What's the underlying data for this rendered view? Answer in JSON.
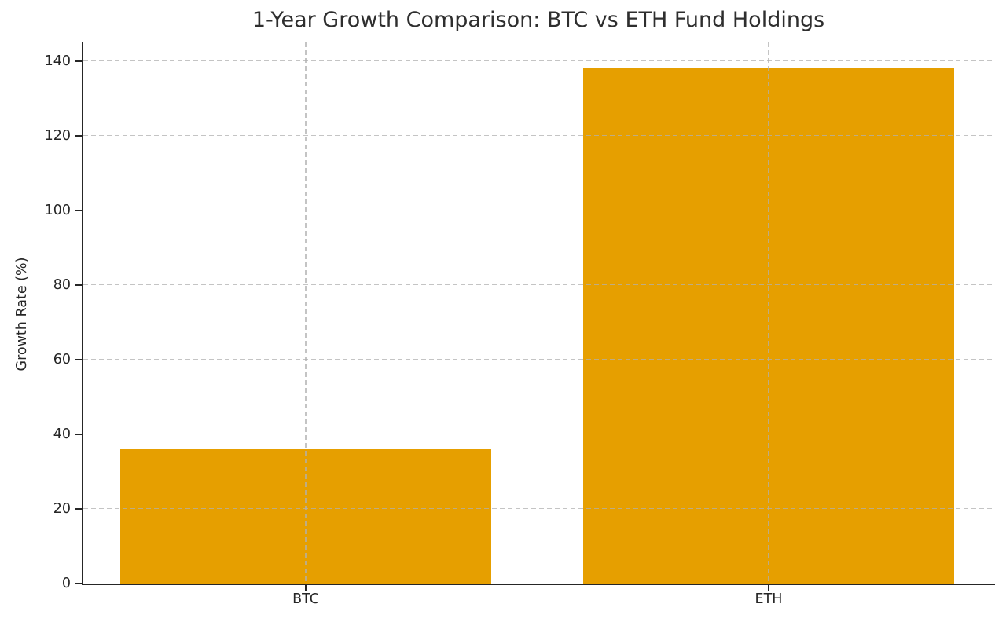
{
  "chart_data": {
    "type": "bar",
    "title": "1-Year Growth Comparison: BTC vs ETH Fund Holdings",
    "xlabel": "",
    "ylabel": "Growth Rate (%)",
    "categories": [
      "BTC",
      "ETH"
    ],
    "values": [
      36,
      138.3
    ],
    "yticks": [
      0,
      20,
      40,
      60,
      80,
      100,
      120,
      140
    ],
    "ylim": [
      0,
      145
    ],
    "bar_color": "#E69F00",
    "grid": {
      "visible": true,
      "style": "dashed",
      "axes": "both",
      "color": "#b0b0b0",
      "drawn_above_bars": true
    },
    "legend": "none",
    "background_color": "#ffffff",
    "spine_color": "#262626",
    "visible_spines": [
      "left",
      "bottom"
    ]
  }
}
